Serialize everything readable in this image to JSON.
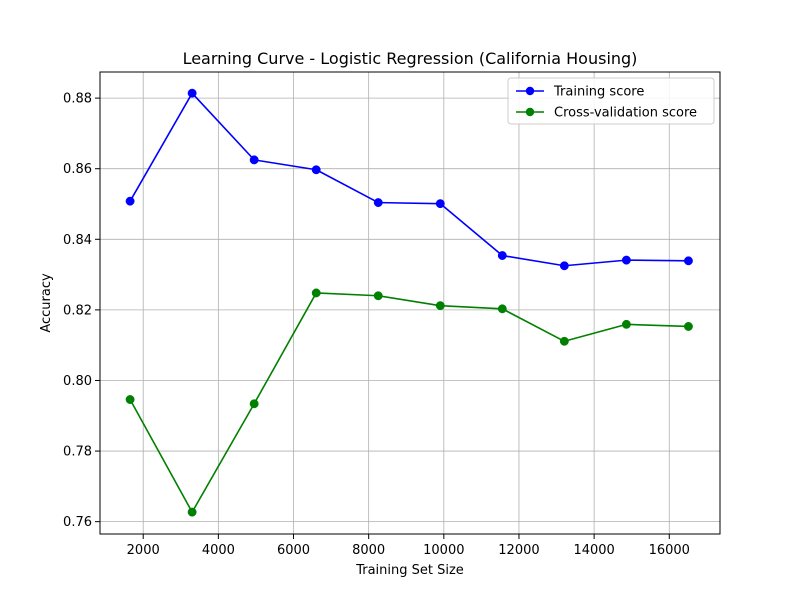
{
  "chart_data": {
    "type": "line",
    "title": "Learning Curve - Logistic Regression (California Housing)",
    "xlabel": "Training Set Size",
    "ylabel": "Accuracy",
    "xlim": [
      850,
      17350
    ],
    "ylim": [
      0.7565,
      0.8874
    ],
    "xticks": [
      2000,
      4000,
      6000,
      8000,
      10000,
      12000,
      14000,
      16000
    ],
    "yticks": [
      0.76,
      0.78,
      0.8,
      0.82,
      0.84,
      0.86,
      0.88
    ],
    "ytick_labels": [
      "0.76",
      "0.78",
      "0.80",
      "0.82",
      "0.84",
      "0.86",
      "0.88"
    ],
    "grid": true,
    "legend_position": "top-right",
    "x": [
      1651,
      3302,
      4953,
      6604,
      8255,
      9906,
      11557,
      13208,
      14859,
      16510
    ],
    "series": [
      {
        "name": "Training score",
        "color": "#0000ff",
        "marker": "circle",
        "values": [
          0.8508,
          0.8814,
          0.8625,
          0.8597,
          0.8504,
          0.8501,
          0.8354,
          0.8325,
          0.8341,
          0.8339
        ]
      },
      {
        "name": "Cross-validation score",
        "color": "#008000",
        "marker": "circle",
        "values": [
          0.7946,
          0.7627,
          0.7934,
          0.8248,
          0.824,
          0.8212,
          0.8203,
          0.8111,
          0.8159,
          0.8153
        ]
      }
    ]
  }
}
